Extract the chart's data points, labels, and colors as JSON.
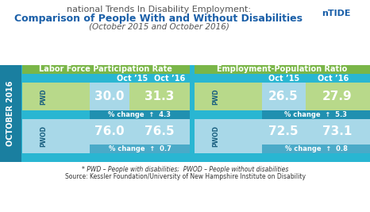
{
  "title_line1": "national Trends In Disability Employment:",
  "title_line2": "Comparison of People With and Without Disabilities",
  "title_line3": "(October 2015 and October 2016)",
  "left_panel_title": "Labor Force Participation Rate",
  "right_panel_title": "Employment-Population Ratio",
  "col1_label": "Oct ’15",
  "col2_label": "Oct ’16",
  "pwd_label": "PWD",
  "pwod_label": "PWOD",
  "left_pwd_oct15": "30.0",
  "left_pwd_oct16": "31.3",
  "left_pwd_change": "% change  ↑  4.3",
  "left_pwod_oct15": "76.0",
  "left_pwod_oct16": "76.5",
  "left_pwod_change": "% change  ↑  0.7",
  "right_pwd_oct15": "26.5",
  "right_pwd_oct16": "27.9",
  "right_pwd_change": "% change  ↑  5.3",
  "right_pwod_oct15": "72.5",
  "right_pwod_oct16": "73.1",
  "right_pwod_change": "% change  ↑  0.8",
  "footnote1": "* PWD – People with disabilities;  PWOD – People without disabilities",
  "footnote2": "Source: Kessler Foundation/University of New Hampshire Institute on Disability",
  "color_teal_dark": "#1a7fa0",
  "color_teal_panel": "#29b6d2",
  "color_green_header": "#7ab648",
  "color_green_light": "#b8d98a",
  "color_blue_light": "#a8d8e8",
  "color_blue_mid": "#4aaac8",
  "color_white": "#ffffff",
  "color_title1": "#555555",
  "color_title2": "#1a5fa8",
  "color_title3": "#555555",
  "sidebar_color": "#1a7fa0",
  "sidebar_text": "OCTOBER 2016",
  "outer_bg": "#29b6d2",
  "footnote_color": "#333333"
}
